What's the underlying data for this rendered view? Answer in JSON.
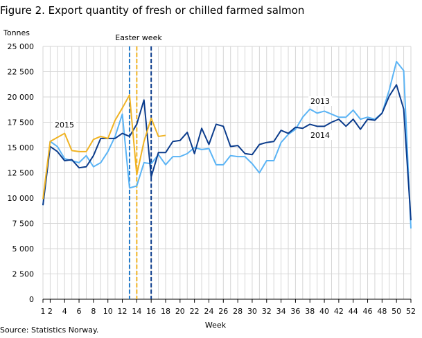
{
  "chart_data": {
    "type": "line",
    "title": "Figure 2. Export quantity of fresh or chilled farmed salmon",
    "ylabel": "Tonnes",
    "xlabel": "Week",
    "source": "Source: Statistics Norway.",
    "ylim": [
      0,
      25000
    ],
    "yticks": [
      0,
      2500,
      5000,
      7500,
      10000,
      12500,
      15000,
      17500,
      20000,
      22500,
      25000
    ],
    "ytick_labels": [
      "0",
      "2 500",
      "5 000",
      "7 500",
      "10 000",
      "12 500",
      "15 000",
      "17 500",
      "20 000",
      "22 500",
      "25 000"
    ],
    "xlim": [
      1,
      52
    ],
    "xtick_labels": [
      "1",
      "2",
      "4",
      "6",
      "8",
      "10",
      "12",
      "14",
      "16",
      "18",
      "20",
      "22",
      "24",
      "26",
      "28",
      "30",
      "32",
      "34",
      "36",
      "38",
      "40",
      "42",
      "44",
      "46",
      "48",
      "50",
      "52"
    ],
    "grid": true,
    "annotation": "Easter week",
    "series": [
      {
        "name": "2013",
        "color": "#5bb4f5",
        "start_week": 1,
        "easter_week": 13,
        "values": [
          9300,
          15600,
          15100,
          13900,
          13700,
          13500,
          14200,
          13100,
          13500,
          14600,
          16100,
          18300,
          11000,
          11200,
          13500,
          13400,
          14300,
          13300,
          14100,
          14100,
          14400,
          15000,
          14800,
          14900,
          13300,
          13300,
          14200,
          14100,
          14100,
          13400,
          12500,
          13700,
          13700,
          15500,
          16300,
          16800,
          18000,
          18800,
          18400,
          18600,
          18300,
          18000,
          18000,
          18700,
          17800,
          18000,
          17800,
          18400,
          20700,
          23500,
          22600,
          7000
        ]
      },
      {
        "name": "2014",
        "color": "#0b3c8c",
        "start_week": 1,
        "easter_week": 16,
        "values": [
          9300,
          15100,
          14600,
          13700,
          13800,
          13000,
          13100,
          14200,
          15900,
          15900,
          15900,
          16400,
          16100,
          17300,
          19700,
          12100,
          14500,
          14500,
          15600,
          15700,
          16500,
          14400,
          16900,
          15300,
          17300,
          17100,
          15100,
          15200,
          14400,
          14300,
          15300,
          15500,
          15600,
          16700,
          16400,
          17000,
          16900,
          17300,
          17100,
          17100,
          17500,
          17800,
          17100,
          17800,
          16800,
          17800,
          17700,
          18400,
          20100,
          21200,
          18800,
          7800
        ]
      },
      {
        "name": "2015",
        "color": "#f0b323",
        "start_week": 1,
        "easter_week": 14,
        "values": [
          9900,
          15600,
          16000,
          16400,
          14700,
          14600,
          14600,
          15800,
          16100,
          15900,
          17700,
          18900,
          20200,
          12300,
          15600,
          17900,
          16100,
          16200
        ]
      }
    ]
  }
}
